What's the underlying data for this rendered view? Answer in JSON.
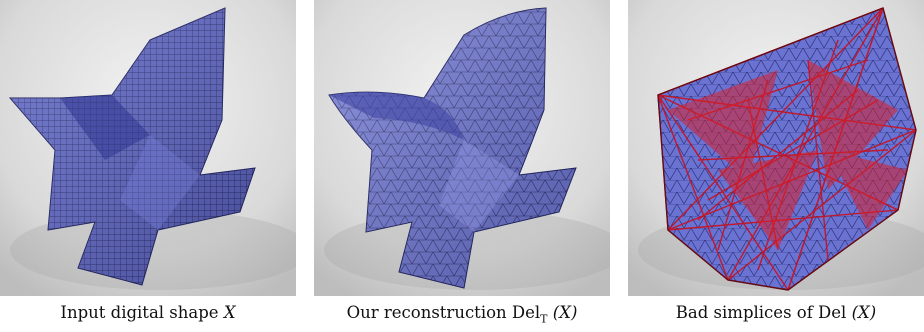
{
  "panels": [
    {
      "caption_text": "Input digital shape",
      "caption_var": "X"
    },
    {
      "caption_text": "Our reconstruction Del",
      "caption_sub": "T",
      "caption_arg": "(X)"
    },
    {
      "caption_text": "Bad simplices of Del",
      "caption_arg": "(X)"
    }
  ],
  "colors": {
    "shape_fill": "#5c64c8",
    "shape_dark": "#2d3290",
    "edge_line": "#1a1a40",
    "bad_simplex": "#d8202a",
    "background": "#dcdcdc"
  }
}
